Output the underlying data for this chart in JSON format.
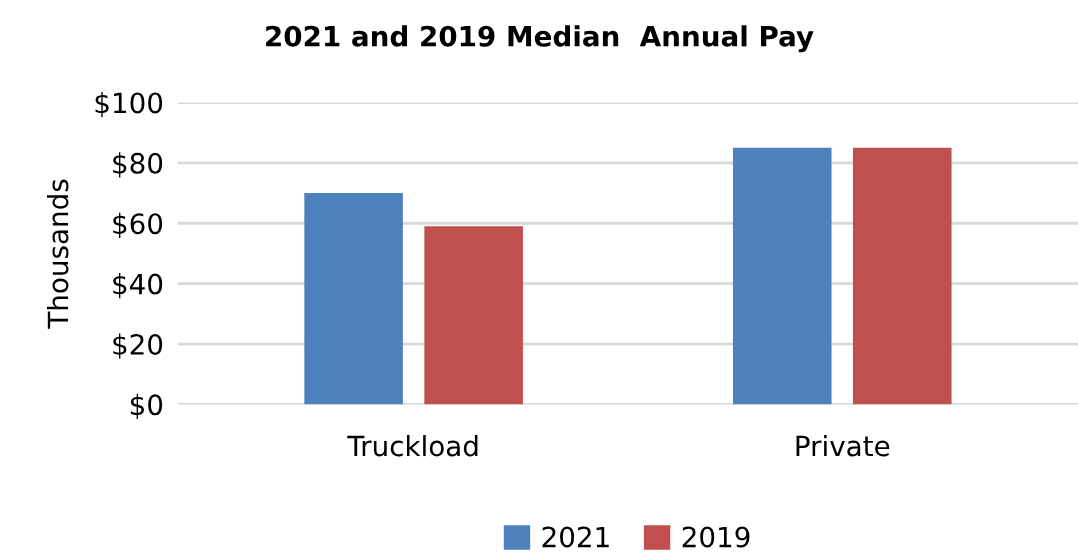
{
  "chart_data": {
    "type": "bar",
    "title": "2021 and 2019 Median  Annual Pay",
    "ylabel": "Thousands",
    "categories": [
      "Truckload",
      "Private"
    ],
    "series": [
      {
        "name": "2021",
        "color": "#4f81bd",
        "values": [
          70,
          85
        ]
      },
      {
        "name": "2019",
        "color": "#c0504d",
        "values": [
          59,
          85
        ]
      }
    ],
    "ylim": [
      0,
      100
    ],
    "yticks": [
      {
        "value": 0,
        "label": "$0"
      },
      {
        "value": 20,
        "label": "$20"
      },
      {
        "value": 40,
        "label": "$40"
      },
      {
        "value": 60,
        "label": "$60"
      },
      {
        "value": 80,
        "label": "$80"
      },
      {
        "value": 100,
        "label": "$100"
      }
    ],
    "grid": "y",
    "legend": "bottom"
  }
}
